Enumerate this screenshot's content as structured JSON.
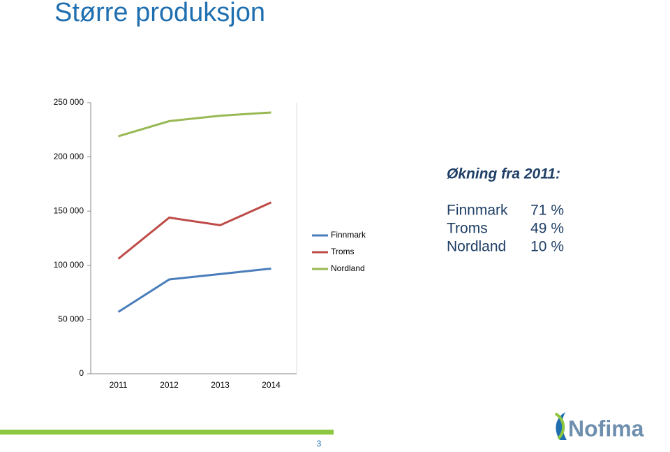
{
  "chart_data": {
    "type": "line",
    "title": "Større produksjon",
    "categories": [
      "2011",
      "2012",
      "2013",
      "2014"
    ],
    "series": [
      {
        "name": "Finnmark",
        "color": "#4a7ebb",
        "values": [
          57000,
          87000,
          92000,
          97000
        ]
      },
      {
        "name": "Troms",
        "color": "#be4b48",
        "values": [
          106000,
          144000,
          137000,
          158000
        ]
      },
      {
        "name": "Nordland",
        "color": "#98b954",
        "values": [
          219000,
          233000,
          238000,
          241000
        ]
      }
    ],
    "ylim": [
      0,
      250000
    ],
    "yticks": [
      0,
      {
        "value": 50000,
        "label": "50 000"
      },
      {
        "value": 100000,
        "label": "100 000"
      },
      {
        "value": 150000,
        "label": "150 000"
      },
      {
        "value": 200000,
        "label": "200 000"
      },
      {
        "value": 250000,
        "label": "250 000"
      }
    ],
    "legend": "right"
  },
  "summary": {
    "title": "Økning fra 2011:",
    "rows": [
      {
        "name": "Finnmark",
        "change": "71 %"
      },
      {
        "name": "Troms",
        "change": "49 %"
      },
      {
        "name": "Nordland",
        "change": "10 %"
      }
    ]
  },
  "slide": {
    "page": "3",
    "logo": "Nofima"
  }
}
